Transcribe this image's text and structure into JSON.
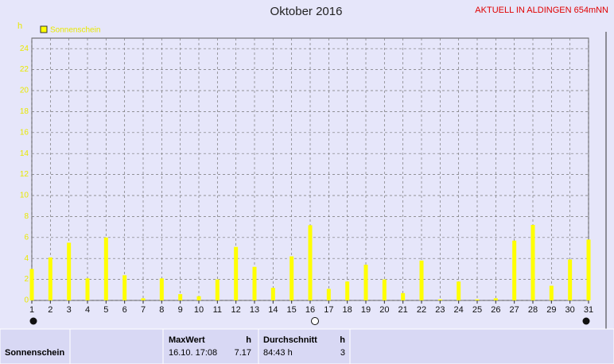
{
  "chart_data": {
    "type": "bar",
    "title": "Oktober 2016",
    "y_label": "h",
    "x": [
      1,
      2,
      3,
      4,
      5,
      6,
      7,
      8,
      9,
      10,
      11,
      12,
      13,
      14,
      15,
      16,
      17,
      18,
      19,
      20,
      21,
      22,
      23,
      24,
      25,
      26,
      27,
      28,
      29,
      30,
      31
    ],
    "series": [
      {
        "name": "Sonnenschein",
        "color": "#ffff00",
        "values": [
          3.0,
          4.1,
          5.5,
          2.1,
          6.0,
          2.4,
          0.2,
          2.1,
          0.6,
          0.4,
          2.0,
          5.1,
          3.2,
          1.2,
          4.2,
          7.17,
          1.1,
          1.8,
          3.4,
          2.0,
          0.7,
          3.8,
          0.1,
          1.8,
          0.1,
          0.2,
          5.7,
          7.2,
          1.4,
          3.9,
          5.8
        ]
      }
    ],
    "xlim": [
      1,
      31
    ],
    "xticks": [
      1,
      2,
      3,
      4,
      5,
      6,
      7,
      8,
      9,
      10,
      11,
      12,
      13,
      14,
      15,
      16,
      17,
      18,
      19,
      20,
      21,
      22,
      23,
      24,
      25,
      26,
      27,
      28,
      29,
      30,
      31
    ],
    "ylim": [
      0,
      25
    ],
    "yticks": [
      0,
      2,
      4,
      6,
      8,
      10,
      12,
      14,
      16,
      18,
      20,
      22,
      24
    ],
    "grid": true
  },
  "header": {
    "station": "AKTUELL IN ALDINGEN 654mNN"
  },
  "table": {
    "row_label": "Sonnenschein",
    "max": {
      "label": "MaxWert",
      "unit": "h",
      "time": "16.10. 17:08",
      "value": "7.17"
    },
    "avg": {
      "label": "Durchschnitt",
      "unit": "h",
      "time": "84:43 h",
      "value": "3"
    }
  }
}
